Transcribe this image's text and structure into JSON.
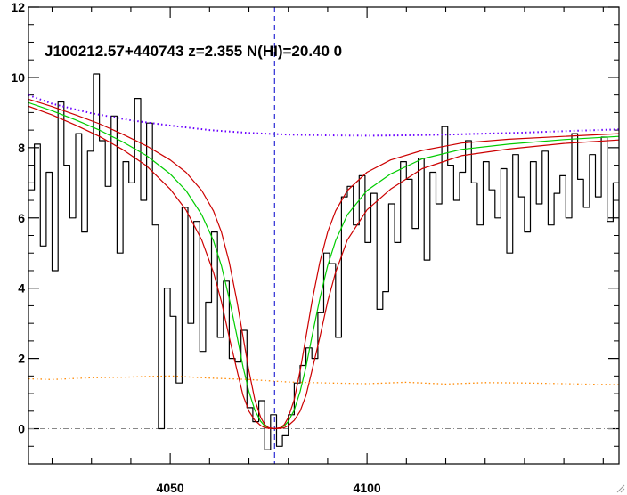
{
  "chart_data": {
    "type": "line",
    "title": "J100212.57+440743 z=2.355 N(HI)=20.40 0",
    "xlabel": "",
    "ylabel": "",
    "xlim": [
      4014,
      4164
    ],
    "ylim": [
      -1,
      12
    ],
    "x_ticks": [
      4050,
      4100
    ],
    "y_ticks": [
      0,
      2,
      4,
      6,
      8,
      10,
      12
    ],
    "grid": false,
    "colors": {
      "flux": "#000000",
      "fit": "#00cc00",
      "fit_bounds": "#cc0000",
      "continuum": "#6a00ff",
      "error": "#ff8800",
      "center_line": "#0000cc",
      "zero_line": "#888888"
    },
    "center_wavelength": 4076.5,
    "series": [
      {
        "style": "steps",
        "x": [
          4014,
          4015.5,
          4017,
          4018.5,
          4020,
          4021.5,
          4023,
          4024.5,
          4026,
          4027.5,
          4029,
          4030.5,
          4032,
          4033.5,
          4035,
          4036.5,
          4038,
          4039.5,
          4041,
          4042.5,
          4044,
          4045.5,
          4047,
          4048.5,
          4050,
          4051.5,
          4053,
          4054.5,
          4056,
          4057.5,
          4059,
          4060.5,
          4062,
          4063.5,
          4065,
          4066.5,
          4068,
          4069.5,
          4071,
          4072.5,
          4074,
          4075.5,
          4077,
          4078.5,
          4080,
          4081.5,
          4083,
          4084.5,
          4086,
          4087.5,
          4089,
          4090.5,
          4092,
          4093.5,
          4095,
          4096.5,
          4098,
          4099.5,
          4101,
          4102.5,
          4104,
          4105.5,
          4107,
          4108.5,
          4110,
          4111.5,
          4113,
          4114.5,
          4116,
          4117.5,
          4119,
          4120.5,
          4122,
          4123.5,
          4125,
          4126.5,
          4128,
          4129.5,
          4131,
          4132.5,
          4134,
          4135.5,
          4137,
          4138.5,
          4140,
          4141.5,
          4143,
          4144.5,
          4146,
          4147.5,
          4149,
          4150.5,
          4152,
          4153.5,
          4155,
          4156.5,
          4158,
          4159.5,
          4161,
          4162.5
        ],
        "y": [
          6.8,
          8.1,
          5.2,
          7.3,
          4.5,
          9.3,
          7.5,
          6.0,
          8.4,
          5.6,
          7.9,
          10.1,
          8.2,
          6.9,
          8.9,
          5.0,
          7.6,
          7.0,
          9.4,
          6.5,
          8.7,
          5.8,
          0.0,
          4.0,
          3.2,
          1.3,
          6.3,
          3.0,
          5.9,
          2.2,
          3.6,
          5.6,
          2.6,
          4.2,
          2.0,
          1.9,
          2.8,
          0.6,
          0.2,
          0.8,
          -0.6,
          0.4,
          -0.5,
          -0.2,
          0.4,
          1.3,
          1.8,
          2.3,
          2.0,
          3.3,
          5.0,
          4.7,
          2.6,
          6.6,
          6.9,
          5.8,
          7.2,
          5.3,
          6.7,
          3.4,
          3.9,
          6.4,
          5.3,
          7.6,
          7.1,
          5.7,
          7.7,
          4.8,
          7.3,
          6.4,
          8.6,
          7.5,
          6.5,
          7.3,
          8.2,
          7.0,
          5.8,
          7.6,
          6.8,
          6.0,
          7.4,
          5.0,
          7.8,
          6.6,
          5.6,
          7.6,
          6.4,
          7.9,
          5.8,
          6.7,
          7.2,
          6.0,
          8.4,
          7.1,
          6.3,
          7.8,
          6.6,
          8.3,
          5.9,
          7.0
        ]
      },
      {
        "style": "line",
        "x": [
          4014,
          4020,
          4026,
          4032,
          4038,
          4044,
          4050,
          4054,
          4058,
          4061,
          4063,
          4065,
          4067,
          4068.5,
          4070,
          4071.5,
          4073,
          4074,
          4075,
          4076.5,
          4078,
          4079,
          4080,
          4081.5,
          4083,
          4084.5,
          4086,
          4088,
          4090,
          4092,
          4095,
          4100,
          4106,
          4114,
          4124,
          4136,
          4150,
          4164
        ],
        "y": [
          9.28,
          9.05,
          8.79,
          8.5,
          8.16,
          7.77,
          7.25,
          6.78,
          6.09,
          5.35,
          4.64,
          3.7,
          2.61,
          1.76,
          1.06,
          0.53,
          0.21,
          0.08,
          0.02,
          0.0,
          0.02,
          0.08,
          0.21,
          0.53,
          1.06,
          1.76,
          2.61,
          3.7,
          4.64,
          5.35,
          6.09,
          6.78,
          7.25,
          7.68,
          7.95,
          8.1,
          8.23,
          8.32
        ]
      },
      {
        "style": "line",
        "x": [
          4014,
          4020,
          4026,
          4032,
          4038,
          4044,
          4050,
          4054,
          4058,
          4061,
          4063,
          4065,
          4067,
          4068.5,
          4070,
          4071.5,
          4073,
          4074,
          4075,
          4076.5,
          4078,
          4079,
          4080,
          4081.5,
          4083,
          4084.5,
          4086,
          4088,
          4090,
          4092,
          4095,
          4100,
          4106,
          4114,
          4124,
          4136,
          4150,
          4164
        ],
        "y": [
          9.38,
          9.17,
          8.93,
          8.68,
          8.38,
          8.05,
          7.65,
          7.3,
          6.78,
          6.2,
          5.6,
          4.74,
          3.6,
          2.62,
          1.65,
          0.83,
          0.32,
          0.12,
          0.03,
          0.0,
          0.03,
          0.12,
          0.32,
          0.83,
          1.65,
          2.62,
          3.6,
          4.74,
          5.6,
          6.2,
          6.78,
          7.3,
          7.65,
          7.92,
          8.13,
          8.24,
          8.32,
          8.4
        ]
      },
      {
        "style": "line",
        "x": [
          4014,
          4020,
          4026,
          4032,
          4038,
          4044,
          4050,
          4054,
          4058,
          4061,
          4063,
          4065,
          4067,
          4068.5,
          4070,
          4071.5,
          4073,
          4074,
          4075,
          4076.5,
          4078,
          4079,
          4080,
          4081.5,
          4083,
          4084.5,
          4086,
          4088,
          4090,
          4092,
          4095,
          4100,
          4106,
          4114,
          4124,
          4136,
          4150,
          4164
        ],
        "y": [
          9.18,
          8.93,
          8.64,
          8.32,
          7.94,
          7.48,
          6.82,
          6.23,
          5.37,
          4.45,
          3.62,
          2.6,
          1.64,
          0.95,
          0.5,
          0.24,
          0.09,
          0.03,
          0.01,
          0.0,
          0.01,
          0.03,
          0.09,
          0.24,
          0.5,
          0.95,
          1.64,
          2.6,
          3.62,
          4.45,
          5.37,
          6.23,
          6.82,
          7.4,
          7.77,
          7.96,
          8.12,
          8.22
        ]
      },
      {
        "style": "dotted",
        "x": [
          4014,
          4020,
          4030,
          4040,
          4050,
          4060,
          4070,
          4080,
          4090,
          4100,
          4110,
          4120,
          4130,
          4140,
          4150,
          4164
        ],
        "y": [
          9.5,
          9.25,
          8.98,
          8.78,
          8.63,
          8.5,
          8.42,
          8.37,
          8.35,
          8.34,
          8.35,
          8.37,
          8.4,
          8.43,
          8.47,
          8.52
        ]
      },
      {
        "style": "dotted",
        "x": [
          4014,
          4020,
          4030,
          4040,
          4050,
          4060,
          4070,
          4080,
          4090,
          4100,
          4110,
          4120,
          4130,
          4140,
          4150,
          4164
        ],
        "y": [
          1.42,
          1.4,
          1.45,
          1.47,
          1.5,
          1.44,
          1.4,
          1.33,
          1.3,
          1.28,
          1.32,
          1.27,
          1.31,
          1.3,
          1.28,
          1.25
        ]
      }
    ]
  }
}
